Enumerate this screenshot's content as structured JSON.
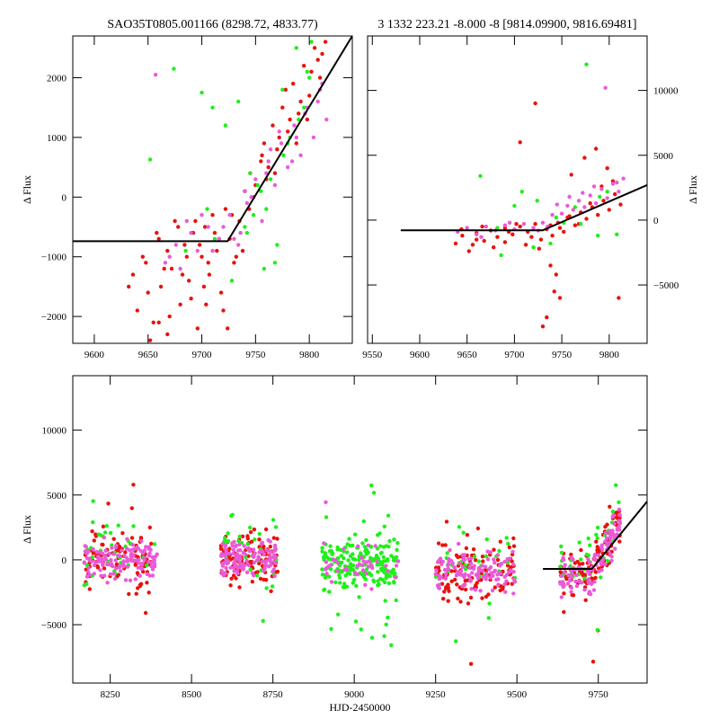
{
  "colors": {
    "red": "#e8120c",
    "green": "#1ef01a",
    "magenta": "#ea5ad8",
    "fit": "#000000"
  },
  "chart_data": [
    {
      "type": "scatter",
      "title": "SAO35T0805.001166 (8298.72, 4833.77)",
      "xlabel": "",
      "ylabel": "Δ Flux",
      "xlim": [
        9580,
        9840
      ],
      "ylim": [
        -2450,
        2700
      ],
      "y_axis_side": "left",
      "xticks": [
        9600,
        9650,
        9700,
        9750,
        9800
      ],
      "yticks": [
        -2000,
        -1000,
        0,
        1000,
        2000
      ],
      "yticklabels": [
        "−2000",
        "−1000",
        "0",
        "1000",
        "2000"
      ],
      "fit_line": {
        "x": [
          9580,
          9724,
          9840
        ],
        "y": [
          -740,
          -740,
          2700
        ]
      },
      "series": [
        {
          "color": "red",
          "x": [
            9632,
            9640,
            9648,
            9655,
            9660,
            9662,
            9668,
            9672,
            9675,
            9680,
            9684,
            9688,
            9692,
            9696,
            9700,
            9703,
            9707,
            9710,
            9714,
            9718,
            9722,
            9726,
            9730,
            9735,
            9740,
            9745,
            9750,
            9755,
            9758,
            9762,
            9766,
            9770,
            9775,
            9780,
            9785,
            9790,
            9795,
            9800,
            9805,
            9810,
            9815,
            9645,
            9650,
            9658,
            9665,
            9670,
            9678,
            9690,
            9698,
            9706,
            9712,
            9720,
            9728,
            9738,
            9748,
            9760,
            9772,
            9782,
            9792,
            9802,
            9812,
            9652,
            9668,
            9682,
            9694,
            9702,
            9716,
            9732,
            9744,
            9756,
            9768,
            9778,
            9788,
            9798,
            9808,
            9636,
            9660,
            9686,
            9704,
            9724
          ],
          "y": [
            -1500,
            -1900,
            -1100,
            -2100,
            -700,
            -1500,
            -2300,
            -1200,
            -400,
            -1800,
            -800,
            -1400,
            -600,
            -2200,
            -1000,
            -500,
            -1300,
            -300,
            -900,
            -1600,
            -200,
            -700,
            -1100,
            -400,
            100,
            400,
            200,
            600,
            900,
            500,
            1200,
            800,
            1500,
            1100,
            1900,
            1400,
            2200,
            1700,
            2500,
            2000,
            2600,
            -1000,
            -1600,
            -600,
            -1200,
            -2000,
            -500,
            -1700,
            -800,
            -1100,
            -600,
            -1900,
            -300,
            -900,
            0,
            300,
            1000,
            1300,
            1600,
            2100,
            2400,
            -2400,
            -900,
            -1300,
            -400,
            -1500,
            -700,
            -1000,
            -200,
            700,
            400,
            1800,
            900,
            1300,
            2300,
            -1300,
            -2100,
            -1000,
            -1800,
            -2200
          ]
        },
        {
          "color": "green",
          "x": [
            9652,
            9674,
            9700,
            9710,
            9722,
            9734,
            9742,
            9748,
            9752,
            9758,
            9764,
            9770,
            9776,
            9782,
            9788,
            9795,
            9802,
            9685,
            9705,
            9728,
            9740,
            9755,
            9768,
            9780,
            9790,
            9800,
            9712,
            9745,
            9760,
            9775,
            9798
          ],
          "y": [
            630,
            2150,
            1750,
            1500,
            1200,
            1600,
            -600,
            -300,
            200,
            -1200,
            300,
            -800,
            700,
            1000,
            2500,
            1500,
            2600,
            -900,
            -200,
            -1400,
            -500,
            100,
            -1100,
            900,
            1300,
            2000,
            -700,
            400,
            -200,
            1800,
            2100
          ]
        },
        {
          "color": "magenta",
          "x": [
            9657,
            9666,
            9676,
            9686,
            9696,
            9706,
            9716,
            9726,
            9734,
            9742,
            9750,
            9756,
            9762,
            9768,
            9774,
            9780,
            9786,
            9792,
            9798,
            9804,
            9810,
            9816,
            9670,
            9690,
            9710,
            9730,
            9746,
            9760,
            9772,
            9784,
            9796,
            9808,
            9700,
            9720,
            9740,
            9764,
            9788,
            9812,
            9680,
            9736
          ],
          "y": [
            2050,
            -1100,
            -800,
            -400,
            -900,
            -500,
            -700,
            -300,
            -800,
            -100,
            300,
            -400,
            600,
            200,
            900,
            500,
            1200,
            700,
            1500,
            1000,
            1800,
            1300,
            -1000,
            -600,
            -900,
            -700,
            0,
            400,
            1100,
            600,
            1400,
            1600,
            -300,
            -500,
            100,
            800,
            1000,
            1900,
            -1200,
            -600
          ]
        }
      ]
    },
    {
      "type": "scatter",
      "title": "3 1332 223.21 -8.000 -8 [9814.09900, 9816.69481]",
      "xlabel": "",
      "ylabel": "Δ Flux",
      "xlim": [
        9545,
        9840
      ],
      "ylim": [
        -9500,
        14200
      ],
      "y_axis_side": "right",
      "xticks": [
        9550,
        9600,
        9650,
        9700,
        9750,
        9800
      ],
      "yticks": [
        -5000,
        0,
        5000,
        10000
      ],
      "yticklabels": [
        "−5000",
        "0",
        "5000",
        "10000"
      ],
      "fit_line": {
        "x": [
          9580,
          9730,
          9840
        ],
        "y": [
          -780,
          -780,
          2700
        ]
      },
      "series": [
        {
          "color": "red",
          "x": [
            9638,
            9645,
            9652,
            9660,
            9668,
            9675,
            9682,
            9690,
            9698,
            9706,
            9714,
            9722,
            9728,
            9734,
            9740,
            9746,
            9752,
            9758,
            9764,
            9770,
            9776,
            9782,
            9788,
            9794,
            9800,
            9806,
            9812,
            9644,
            9656,
            9666,
            9678,
            9694,
            9702,
            9718,
            9726,
            9738,
            9748,
            9756,
            9768,
            9780,
            9792,
            9804,
            9738,
            9742,
            9748,
            9734,
            9730,
            9722,
            9706,
            9660,
            9690,
            9712,
            9744,
            9760,
            9774,
            9786,
            9798,
            9810
          ],
          "y": [
            -1800,
            -1200,
            -2400,
            -1000,
            -1600,
            -800,
            -1300,
            -600,
            -1100,
            -500,
            -900,
            -300,
            -1500,
            -700,
            -1200,
            -200,
            -900,
            300,
            -400,
            600,
            100,
            1000,
            400,
            1500,
            800,
            2000,
            1200,
            -700,
            -1900,
            -500,
            -2100,
            -900,
            -300,
            -1300,
            -2200,
            -400,
            -600,
            200,
            -300,
            1300,
            2600,
            3000,
            -3500,
            -5500,
            -6000,
            -7500,
            -8200,
            9000,
            6000,
            -1500,
            -1700,
            -1900,
            -4200,
            3500,
            4800,
            5500,
            4000,
            -6000
          ]
        },
        {
          "color": "green",
          "x": [
            9664,
            9686,
            9708,
            9724,
            9738,
            9752,
            9764,
            9776,
            9788,
            9798,
            9808,
            9720,
            9744,
            9770,
            9790,
            9682,
            9700
          ],
          "y": [
            3400,
            -2700,
            2200,
            1500,
            -1800,
            -200,
            1000,
            12000,
            -1200,
            2200,
            -1100,
            -2100,
            200,
            -300,
            1800,
            -600,
            1100
          ]
        },
        {
          "color": "magenta",
          "x": [
            9640,
            9650,
            9660,
            9670,
            9680,
            9690,
            9700,
            9710,
            9720,
            9730,
            9740,
            9750,
            9756,
            9762,
            9768,
            9774,
            9780,
            9786,
            9792,
            9798,
            9804,
            9810,
            9815,
            9735,
            9745,
            9758,
            9772,
            9784,
            9796,
            9808,
            9665,
            9695,
            9725
          ],
          "y": [
            -900,
            -600,
            -1100,
            -500,
            -800,
            -400,
            -700,
            -300,
            -600,
            -200,
            400,
            500,
            1100,
            800,
            1500,
            1000,
            1900,
            1300,
            2400,
            1700,
            2800,
            2200,
            3200,
            -500,
            1200,
            1800,
            2100,
            2600,
            10200,
            2900,
            -1300,
            -200,
            -800
          ]
        }
      ]
    },
    {
      "type": "scatter",
      "title": "",
      "xlabel": "HJD-2450000",
      "ylabel": "Δ Flux",
      "xlim": [
        8135,
        9900
      ],
      "ylim": [
        -9500,
        14200
      ],
      "y_axis_side": "left",
      "xticks": [
        8250,
        8500,
        8750,
        9000,
        9250,
        9500,
        9750
      ],
      "yticks": [
        -5000,
        0,
        5000,
        10000
      ],
      "yticklabels": [
        "−5000",
        "0",
        "5000",
        "10000"
      ],
      "fit_line": {
        "x": [
          9580,
          9730,
          9900
        ],
        "y": [
          -700,
          -700,
          4500
        ]
      },
      "segments": [
        {
          "x0": 8170,
          "x1": 8395
        },
        {
          "x0": 8590,
          "x1": 8765
        },
        {
          "x0": 8900,
          "x1": 9135
        },
        {
          "x0": 9250,
          "x1": 9495
        },
        {
          "x0": 9632,
          "x1": 9818
        }
      ]
    }
  ]
}
